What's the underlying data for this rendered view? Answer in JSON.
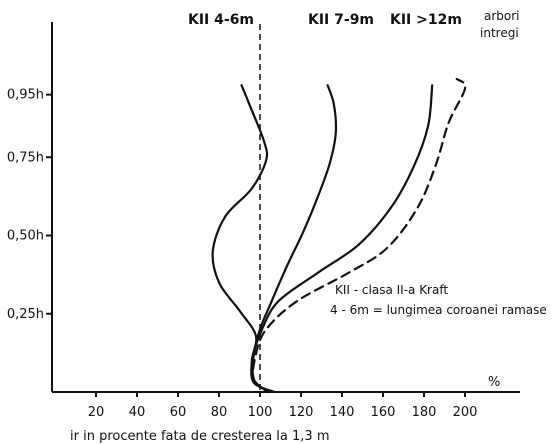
{
  "chart_data": {
    "type": "line",
    "xlabel": "ir in procente fata de cresterea la 1,3 m",
    "x_unit": "%",
    "x_ticks": [
      "20",
      "40",
      "60",
      "80",
      "100",
      "120",
      "140",
      "160",
      "180",
      "200"
    ],
    "x_tick_values": [
      20,
      40,
      60,
      80,
      100,
      120,
      140,
      160,
      180,
      200
    ],
    "y_ticks": [
      "0,95h",
      "0,75h",
      "0,50h",
      "0,25h"
    ],
    "y_tick_values": [
      0.95,
      0.75,
      0.5,
      0.25
    ],
    "xlim": [
      0,
      225
    ],
    "ylim": [
      0,
      1.1
    ],
    "reference_line_x": 100,
    "series": [
      {
        "name": "KII 4-6m",
        "style": "solid",
        "points": [
          [
            107,
            0
          ],
          [
            97,
            0.03
          ],
          [
            96,
            0.1
          ],
          [
            98,
            0.18
          ],
          [
            90,
            0.26
          ],
          [
            80,
            0.35
          ],
          [
            77,
            0.45
          ],
          [
            83,
            0.56
          ],
          [
            96,
            0.65
          ],
          [
            103,
            0.74
          ],
          [
            102,
            0.8
          ],
          [
            96,
            0.9
          ],
          [
            91,
            0.98
          ]
        ]
      },
      {
        "name": "KII 7-9m",
        "style": "solid",
        "points": [
          [
            104,
            0
          ],
          [
            97,
            0.04
          ],
          [
            97,
            0.12
          ],
          [
            100,
            0.2
          ],
          [
            105,
            0.28
          ],
          [
            113,
            0.4
          ],
          [
            121,
            0.51
          ],
          [
            128,
            0.62
          ],
          [
            134,
            0.73
          ],
          [
            137,
            0.83
          ],
          [
            136,
            0.92
          ],
          [
            133,
            0.98
          ]
        ]
      },
      {
        "name": "KII >12m",
        "style": "solid",
        "points": [
          [
            104,
            0
          ],
          [
            97,
            0.04
          ],
          [
            97,
            0.12
          ],
          [
            101,
            0.2
          ],
          [
            109,
            0.29
          ],
          [
            128,
            0.38
          ],
          [
            148,
            0.47
          ],
          [
            164,
            0.59
          ],
          [
            175,
            0.72
          ],
          [
            182,
            0.85
          ],
          [
            184,
            0.98
          ]
        ]
      },
      {
        "name": "arbori intregi",
        "style": "dashed",
        "points": [
          [
            104,
            0
          ],
          [
            97,
            0.04
          ],
          [
            98,
            0.12
          ],
          [
            103,
            0.2
          ],
          [
            118,
            0.29
          ],
          [
            143,
            0.38
          ],
          [
            162,
            0.46
          ],
          [
            177,
            0.59
          ],
          [
            186,
            0.73
          ],
          [
            192,
            0.86
          ],
          [
            200,
            0.97
          ],
          [
            196,
            1.0
          ]
        ]
      }
    ],
    "labels": {
      "k1": "KII 4-6m",
      "k2": "KII 7-9m",
      "k3": "KII >12m",
      "whole_a": "arbori",
      "whole_b": "intregi"
    },
    "annotations": [
      "KII - clasa II-a Kraft",
      "4 - 6m = lungimea coroanei ramase"
    ]
  }
}
